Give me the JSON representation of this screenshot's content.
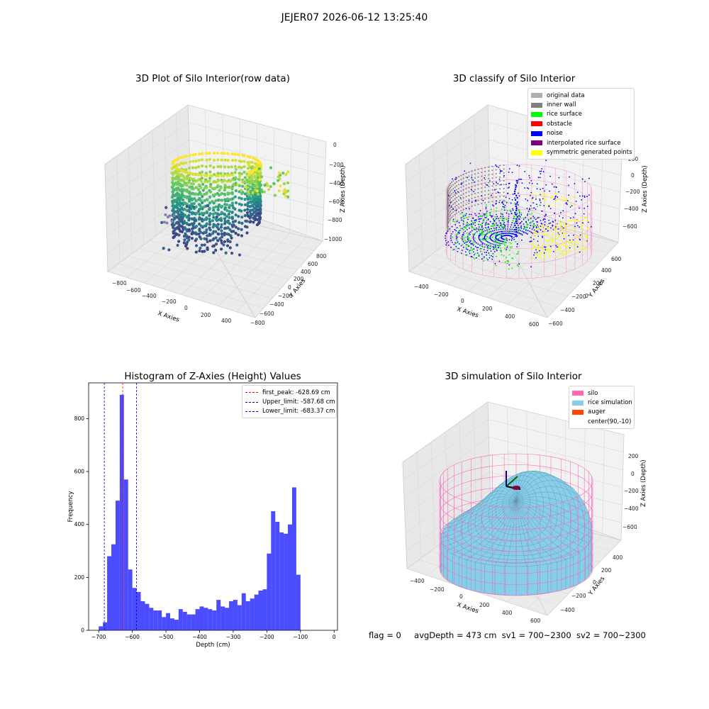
{
  "figure_title": "JEJER07 2026-06-12 13:25:40",
  "colors": {
    "hist_bar": "#0000ff",
    "first_peak": "#ff0000",
    "limits": "#0000cd",
    "silo": "#ff69b4",
    "rice": "#87ceeb",
    "auger": "#ff4500"
  },
  "panels": {
    "raw": {
      "title": "3D Plot of Silo Interior(row data)",
      "xlabel": "X Axies",
      "ylabel": "Y Axies",
      "zlabel": "Z Axies (Depth)",
      "xticks": [
        "−800",
        "−600",
        "−400",
        "−200",
        "0",
        "200",
        "400"
      ],
      "yticks": [
        "800",
        "600",
        "400",
        "200",
        "0",
        "−200",
        "−400",
        "−600",
        "−800"
      ],
      "zticks": [
        "0",
        "−200",
        "−400",
        "−600",
        "−800",
        "−1000"
      ]
    },
    "classify": {
      "title": "3D classify of Silo Interior",
      "xlabel": "X Axies",
      "ylabel": "Y Axies",
      "zlabel": "Z Axies (Depth)",
      "xticks": [
        "−400",
        "−200",
        "0",
        "200",
        "400",
        "600"
      ],
      "yticks": [
        "600",
        "400",
        "200",
        "0",
        "−200",
        "−400",
        "−600"
      ],
      "zticks": [
        "200",
        "0",
        "−200",
        "−400",
        "−600"
      ],
      "legend": [
        {
          "label": "original data",
          "color": "#b0b0b0"
        },
        {
          "label": "inner wall",
          "color": "#808080"
        },
        {
          "label": "rice surface",
          "color": "#00ff00"
        },
        {
          "label": "obstacle",
          "color": "#ff0000"
        },
        {
          "label": "noise",
          "color": "#0000ff"
        },
        {
          "label": "interpolated rice surface",
          "color": "#800080"
        },
        {
          "label": "symmetric generated points",
          "color": "#ffff00"
        }
      ]
    },
    "simulation": {
      "title": "3D simulation of Silo Interior",
      "xlabel": "X Axies",
      "ylabel": "Y Axies",
      "zlabel": "Z Axies (Depth)",
      "xticks": [
        "−400",
        "−200",
        "0",
        "200",
        "400",
        "600"
      ],
      "yticks": [
        "400",
        "200",
        "0",
        "−200",
        "−400"
      ],
      "zticks": [
        "200",
        "0",
        "−200",
        "−400",
        "−600"
      ],
      "legend": [
        {
          "label": "silo",
          "color": "#ff69b4"
        },
        {
          "label": "rice simulation",
          "color": "#87ceeb"
        },
        {
          "label": "auger",
          "color": "#ff4500"
        },
        {
          "label": "center(90,-10)",
          "color": ""
        }
      ]
    }
  },
  "footer": {
    "flag": "flag = 0",
    "avg": "avgDepth = 473 cm",
    "sv1": "sv1 = 700~2300",
    "sv2": "sv2 = 700~2300"
  },
  "chart_data": [
    {
      "type": "heatmap",
      "title": "3D Plot of Silo Interior(row data)",
      "xlabel": "X Axies",
      "ylabel": "Y Axies",
      "zlabel": "Z Axies (Depth)",
      "xlim": [
        -900,
        500
      ],
      "ylim": [
        -800,
        800
      ],
      "zlim": [
        -1000,
        0
      ]
    },
    {
      "type": "scatter",
      "title": "3D classify of Silo Interior",
      "xlabel": "X Axies",
      "ylabel": "Y Axies",
      "zlabel": "Z Axies (Depth)",
      "series": [
        {
          "name": "original data"
        },
        {
          "name": "inner wall"
        },
        {
          "name": "rice surface"
        },
        {
          "name": "obstacle"
        },
        {
          "name": "noise"
        },
        {
          "name": "interpolated rice surface"
        },
        {
          "name": "symmetric generated points"
        }
      ]
    },
    {
      "type": "bar",
      "title": "Histogram of Z-Axies (Height) Values",
      "xlabel": "Depth (cm)",
      "ylabel": "Frequency",
      "xlim": [
        -730,
        10
      ],
      "ylim": [
        0,
        935
      ],
      "xticks": [
        -700,
        -600,
        -500,
        -400,
        -300,
        -200,
        -100,
        0
      ],
      "yticks": [
        0,
        200,
        400,
        600,
        800
      ],
      "bin_width": 12.5,
      "bin_start": -700,
      "values": [
        15,
        30,
        280,
        325,
        490,
        890,
        570,
        230,
        160,
        145,
        110,
        100,
        85,
        75,
        75,
        50,
        65,
        45,
        40,
        80,
        70,
        60,
        60,
        80,
        90,
        85,
        80,
        75,
        115,
        90,
        85,
        110,
        115,
        95,
        140,
        110,
        120,
        135,
        150,
        155,
        290,
        450,
        410,
        370,
        365,
        400,
        540,
        210
      ],
      "vlines": [
        {
          "name": "first_peak",
          "label": "first_peak: -628.69 cm",
          "x": -628.69,
          "color": "#ff0000"
        },
        {
          "name": "upper_limit",
          "label": "Upper_limit: -587.68 cm",
          "x": -587.68,
          "color": "#0000cd"
        },
        {
          "name": "lower_limit",
          "label": "Lower_limit: -683.37 cm",
          "x": -683.37,
          "color": "#0000cd"
        }
      ],
      "legend_position": "top-right"
    },
    {
      "type": "area",
      "title": "3D simulation of Silo Interior",
      "xlabel": "X Axies",
      "ylabel": "Y Axies",
      "zlabel": "Z Axies (Depth)",
      "series": [
        {
          "name": "silo"
        },
        {
          "name": "rice simulation"
        },
        {
          "name": "auger"
        }
      ],
      "annotation": "center(90,-10)"
    }
  ]
}
